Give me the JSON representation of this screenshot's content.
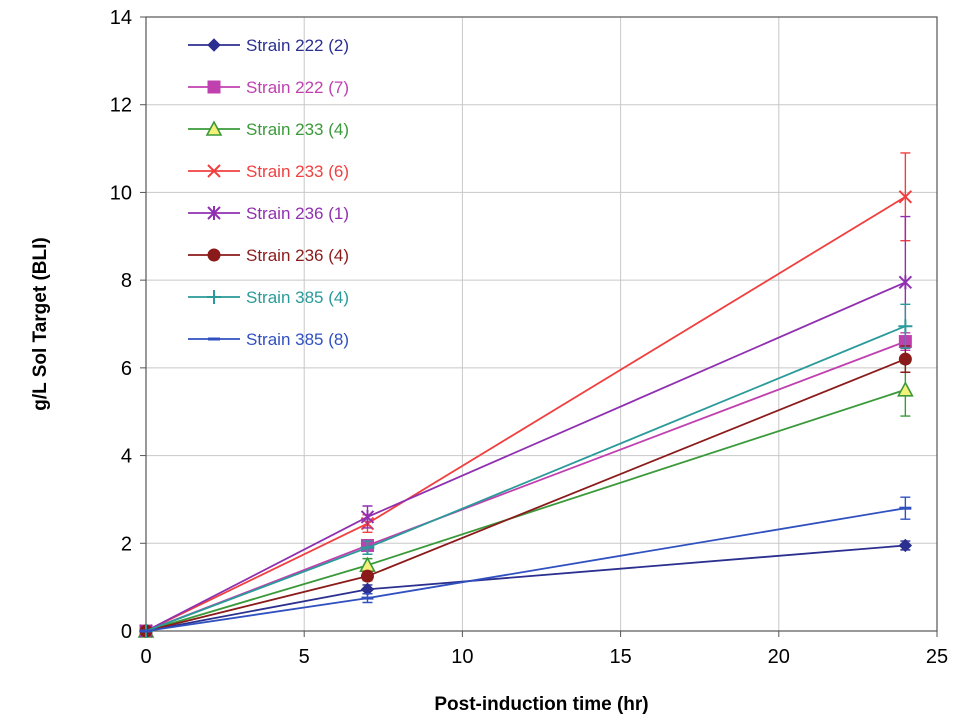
{
  "chart_data": {
    "type": "line",
    "title": "",
    "xlabel": "Post-induction time (hr)",
    "ylabel": "g/L Sol Target (BLI)",
    "xlim": [
      0,
      25
    ],
    "ylim": [
      0,
      14
    ],
    "xticks": [
      0,
      5,
      10,
      15,
      20,
      25
    ],
    "yticks": [
      0,
      2,
      4,
      6,
      8,
      10,
      12,
      14
    ],
    "grid": true,
    "legend_position": "top-left",
    "x": [
      0,
      7,
      24
    ],
    "series": [
      {
        "name": "Strain 222 (2)",
        "color": "#2b2f8f",
        "marker": "diamond",
        "values": [
          0,
          0.95,
          1.95
        ],
        "errors": [
          0,
          0.1,
          0.1
        ]
      },
      {
        "name": "Strain 222 (7)",
        "color": "#c040b0",
        "marker": "square",
        "values": [
          0,
          1.95,
          6.6
        ],
        "errors": [
          0,
          0.1,
          0.2
        ]
      },
      {
        "name": "Strain 233 (4)",
        "color": "#3a9a3a",
        "marker": "triangle",
        "values": [
          0,
          1.5,
          5.5
        ],
        "errors": [
          0,
          0.15,
          0.6
        ]
      },
      {
        "name": "Strain 233 (6)",
        "color": "#f04040",
        "marker": "x",
        "values": [
          0,
          2.45,
          9.9
        ],
        "errors": [
          0,
          0.2,
          1.0
        ]
      },
      {
        "name": "Strain 236 (1)",
        "color": "#9030b0",
        "marker": "star",
        "values": [
          0,
          2.6,
          7.95
        ],
        "errors": [
          0,
          0.25,
          1.5
        ]
      },
      {
        "name": "Strain 236 (4)",
        "color": "#8b1a1a",
        "marker": "circle",
        "values": [
          0,
          1.25,
          6.2
        ],
        "errors": [
          0,
          0.1,
          0.3
        ]
      },
      {
        "name": "Strain 385 (4)",
        "color": "#2a9a9a",
        "marker": "plus",
        "values": [
          0,
          1.9,
          6.95
        ],
        "errors": [
          0,
          0.15,
          0.5
        ]
      },
      {
        "name": "Strain 385 (8)",
        "color": "#3050c0",
        "marker": "dash",
        "values": [
          0,
          0.75,
          2.8
        ],
        "errors": [
          0,
          0.1,
          0.25
        ]
      }
    ]
  }
}
